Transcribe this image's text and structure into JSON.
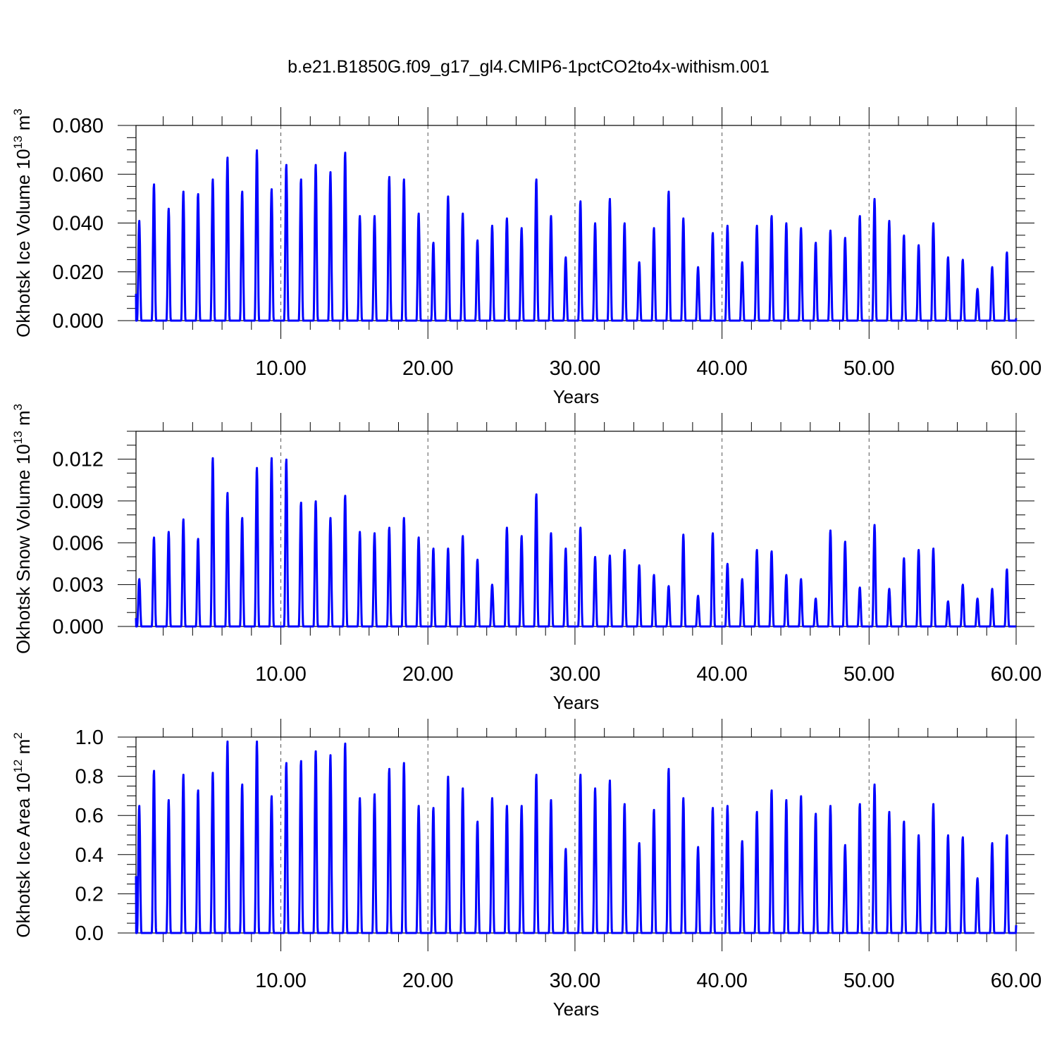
{
  "figure": {
    "title": "b.e21.B1850G.f09_g17_gl4.CMIP6-1pctCO2to4x-withism.001",
    "line_color": "#0000ff"
  },
  "chart_data": [
    {
      "type": "line",
      "ylabel": "Okhotsk Ice Volume 10",
      "ylabel_exp": "13",
      "ylabel_unit": " m",
      "ylabel_unit_exp": "3",
      "xlabel": "Years",
      "xlim": [
        0.15,
        60.0
      ],
      "ylim": [
        0.0,
        0.08
      ],
      "y_ticks": [
        0.0,
        0.02,
        0.04,
        0.06,
        0.08
      ],
      "y_tick_labels": [
        "0.000",
        "0.020",
        "0.040",
        "0.060",
        "0.080"
      ],
      "x_ticks": [
        10,
        20,
        30,
        40,
        50,
        60
      ],
      "x_tick_labels": [
        "10.00",
        "20.00",
        "30.00",
        "40.00",
        "50.00",
        "60.00"
      ],
      "start_value": 0.011,
      "end_value": 0.001,
      "peaks": [
        0.041,
        0.056,
        0.046,
        0.053,
        0.052,
        0.058,
        0.067,
        0.053,
        0.07,
        0.054,
        0.064,
        0.058,
        0.064,
        0.061,
        0.069,
        0.043,
        0.043,
        0.059,
        0.058,
        0.044,
        0.032,
        0.051,
        0.044,
        0.033,
        0.039,
        0.042,
        0.038,
        0.058,
        0.043,
        0.026,
        0.049,
        0.04,
        0.05,
        0.04,
        0.024,
        0.038,
        0.053,
        0.042,
        0.022,
        0.036,
        0.039,
        0.024,
        0.039,
        0.043,
        0.04,
        0.038,
        0.032,
        0.037,
        0.034,
        0.043,
        0.05,
        0.041,
        0.035,
        0.031,
        0.04,
        0.026,
        0.025,
        0.013,
        0.022,
        0.028
      ]
    },
    {
      "type": "line",
      "ylabel": "Okhotsk Snow Volume 10",
      "ylabel_exp": "13",
      "ylabel_unit": " m",
      "ylabel_unit_exp": "3",
      "xlabel": "Years",
      "xlim": [
        0.15,
        60.0
      ],
      "ylim": [
        0.0,
        0.014
      ],
      "y_ticks": [
        0.0,
        0.003,
        0.006,
        0.009,
        0.012
      ],
      "y_tick_labels": [
        "0.000",
        "0.003",
        "0.006",
        "0.009",
        "0.012"
      ],
      "x_ticks": [
        10,
        20,
        30,
        40,
        50,
        60
      ],
      "x_tick_labels": [
        "10.00",
        "20.00",
        "30.00",
        "40.00",
        "50.00",
        "60.00"
      ],
      "start_value": 0.0006,
      "end_value": 0.0,
      "peaks": [
        0.0034,
        0.0064,
        0.0068,
        0.0077,
        0.0063,
        0.0121,
        0.0096,
        0.0078,
        0.0114,
        0.0121,
        0.012,
        0.0089,
        0.009,
        0.0078,
        0.0094,
        0.0068,
        0.0067,
        0.0071,
        0.0078,
        0.0064,
        0.0056,
        0.0056,
        0.0065,
        0.0048,
        0.003,
        0.0071,
        0.0065,
        0.0095,
        0.0067,
        0.0056,
        0.0071,
        0.005,
        0.0051,
        0.0055,
        0.0044,
        0.0037,
        0.0029,
        0.0066,
        0.0022,
        0.0067,
        0.0045,
        0.0034,
        0.0055,
        0.0054,
        0.0037,
        0.0034,
        0.002,
        0.0069,
        0.0061,
        0.0028,
        0.0073,
        0.0027,
        0.0049,
        0.0055,
        0.0056,
        0.0018,
        0.003,
        0.002,
        0.0027,
        0.0041
      ]
    },
    {
      "type": "line",
      "ylabel": "Okhotsk Ice Area 10",
      "ylabel_exp": "12",
      "ylabel_unit": " m",
      "ylabel_unit_exp": "2",
      "xlabel": "Years",
      "xlim": [
        0.15,
        60.0
      ],
      "ylim": [
        0.0,
        1.0
      ],
      "y_ticks": [
        0.0,
        0.2,
        0.4,
        0.6,
        0.8,
        1.0
      ],
      "y_tick_labels": [
        "0.0",
        "0.2",
        "0.4",
        "0.6",
        "0.8",
        "1.0"
      ],
      "x_ticks": [
        10,
        20,
        30,
        40,
        50,
        60
      ],
      "x_tick_labels": [
        "10.00",
        "20.00",
        "30.00",
        "40.00",
        "50.00",
        "60.00"
      ],
      "start_value": 0.29,
      "end_value": 0.04,
      "peaks": [
        0.65,
        0.83,
        0.68,
        0.81,
        0.73,
        0.82,
        0.98,
        0.76,
        0.98,
        0.7,
        0.87,
        0.88,
        0.93,
        0.91,
        0.97,
        0.69,
        0.71,
        0.84,
        0.87,
        0.65,
        0.64,
        0.8,
        0.74,
        0.57,
        0.69,
        0.65,
        0.65,
        0.81,
        0.68,
        0.43,
        0.81,
        0.74,
        0.78,
        0.66,
        0.46,
        0.63,
        0.84,
        0.69,
        0.44,
        0.64,
        0.65,
        0.47,
        0.62,
        0.73,
        0.68,
        0.7,
        0.61,
        0.65,
        0.45,
        0.66,
        0.76,
        0.62,
        0.57,
        0.5,
        0.66,
        0.5,
        0.49,
        0.28,
        0.46,
        0.5
      ]
    }
  ]
}
